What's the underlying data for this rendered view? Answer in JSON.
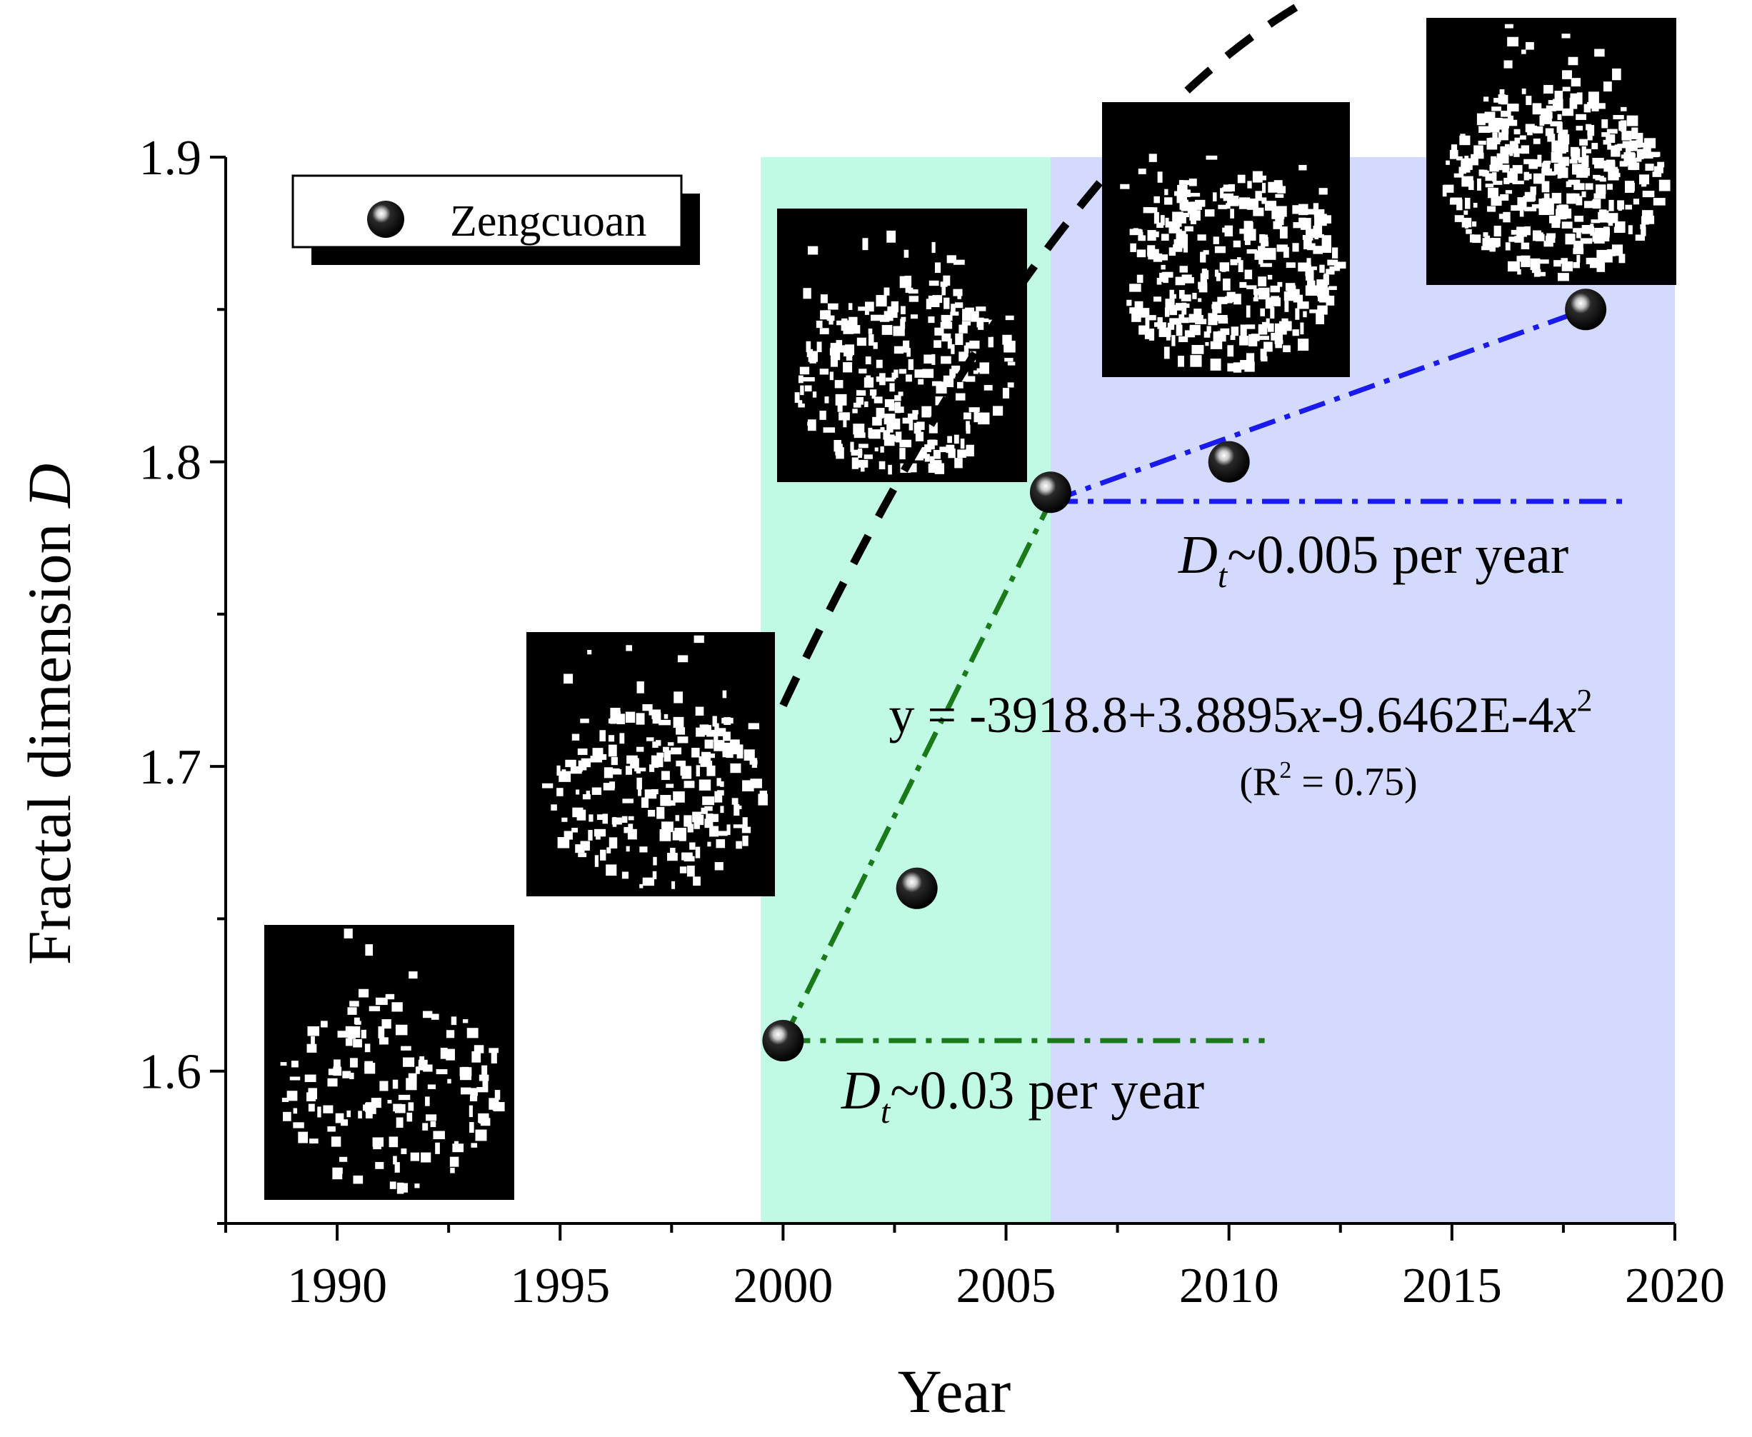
{
  "chart_data": {
    "type": "scatter",
    "xlabel": "Year",
    "ylabel": "Fractal dimension ",
    "ylabel_italic": "D",
    "xlim": [
      1987.5,
      2020
    ],
    "ylim": [
      1.55,
      1.9
    ],
    "xticks": [
      1990,
      1995,
      2000,
      2005,
      2010,
      2015,
      2020
    ],
    "yticks": [
      1.6,
      1.7,
      1.8,
      1.9
    ],
    "grid": false,
    "legend": {
      "position": "top-left",
      "label": "Zengcuoan"
    },
    "series": [
      {
        "name": "Zengcuoan",
        "x": [
          2000,
          2003,
          2006,
          2010,
          2018
        ],
        "y": [
          1.61,
          1.66,
          1.79,
          1.8,
          1.85
        ]
      }
    ],
    "phases": [
      {
        "x0": 1999.5,
        "x1": 2006,
        "color": "#c0f9e4"
      },
      {
        "x0": 2006,
        "x1": 2020,
        "color": "#d4dafd"
      }
    ],
    "fit": {
      "type": "quadratic",
      "equation_prefix": "y = -3918.8+3.8895",
      "equation_mid": "-9.6462E-4",
      "var": "x",
      "exp": "2",
      "r2_text_pre": "(R",
      "r2_text_sup": "2",
      "r2_text_post": " = 0.75)",
      "x_range": [
        2000,
        2018
      ],
      "color": "#000000"
    },
    "trend_lines": [
      {
        "x0": 2000,
        "y0": 1.61,
        "x1": 2006,
        "y1": 1.787,
        "ref_x1": 2010.8,
        "color": "#1a7a1a",
        "label_main": "D",
        "label_sub": "t",
        "label_rest": "~0.03 per year"
      },
      {
        "x0": 2006,
        "y0": 1.787,
        "x1": 2018,
        "y1": 1.85,
        "ref_x1": 2019,
        "color": "#1a1aee",
        "label_main": "D",
        "label_sub": "t",
        "label_rest": "~0.005 per year"
      }
    ],
    "thumbnails": [
      {
        "name": "settlement-map-1990"
      },
      {
        "name": "settlement-map-1995"
      },
      {
        "name": "settlement-map-2000"
      },
      {
        "name": "settlement-map-2006"
      },
      {
        "name": "settlement-map-2018"
      }
    ]
  }
}
